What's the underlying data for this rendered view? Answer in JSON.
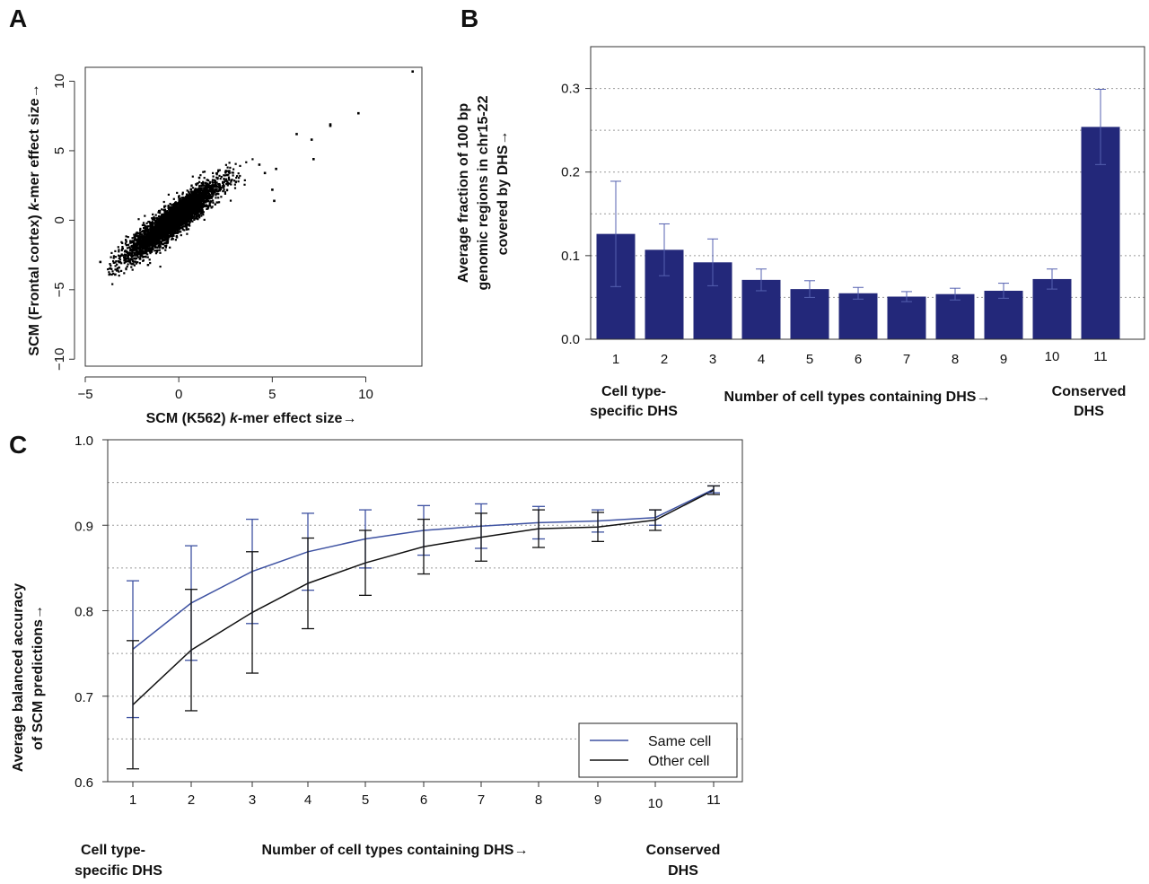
{
  "colors": {
    "bar": "#23287a",
    "bar_error": "#5561b0",
    "same_cell": "#3e52a2",
    "other_cell": "#111111",
    "grid": "#9a9a9a",
    "axis": "#333333"
  },
  "chart_data": [
    {
      "panel": "A",
      "type": "scatter",
      "xlabel": "SCM (K562) k-mer effect size→",
      "ylabel": "SCM (Frontal cortex) k-mer effect size→",
      "xlim": [
        -5,
        13
      ],
      "ylim": [
        -10.5,
        11
      ],
      "xticks": [
        -5,
        0,
        5,
        10
      ],
      "yticks": [
        -10,
        -5,
        0,
        5,
        10
      ],
      "cloud": {
        "description": "dense cloud of thousands of k-mers, correlated",
        "slope": 1.0,
        "x_mean": -0.3,
        "x_sd": 1.2,
        "residual_sd": 0.55,
        "n": 4000
      },
      "outliers": [
        {
          "x": 9.6,
          "y": 7.7
        },
        {
          "x": 8.1,
          "y": 6.9
        },
        {
          "x": 8.1,
          "y": 6.8
        },
        {
          "x": 6.3,
          "y": 6.2
        },
        {
          "x": 7.1,
          "y": 5.8
        },
        {
          "x": 7.2,
          "y": 4.4
        },
        {
          "x": 5.2,
          "y": 3.7
        },
        {
          "x": 5.0,
          "y": 2.2
        },
        {
          "x": 5.1,
          "y": 1.4
        },
        {
          "x": 4.3,
          "y": 4.0
        },
        {
          "x": 4.6,
          "y": 3.4
        },
        {
          "x": -3.4,
          "y": -3.9
        },
        {
          "x": -3.2,
          "y": -3.4
        },
        {
          "x": -4.2,
          "y": -3.0
        },
        {
          "x": 12.5,
          "y": 10.7
        }
      ]
    },
    {
      "panel": "B",
      "type": "bar",
      "title": "",
      "xlabel": "Number of cell types containing DHS→",
      "ylabel_lines": [
        "Average fraction of 100 bp",
        "genomic regions in chr15-22",
        "covered by DHS→"
      ],
      "categories": [
        "1",
        "2",
        "3",
        "4",
        "5",
        "6",
        "7",
        "8",
        "9",
        "10",
        "11"
      ],
      "values": [
        0.126,
        0.107,
        0.092,
        0.071,
        0.06,
        0.055,
        0.051,
        0.054,
        0.058,
        0.072,
        0.254
      ],
      "errors": [
        0.063,
        0.031,
        0.028,
        0.013,
        0.01,
        0.007,
        0.006,
        0.007,
        0.009,
        0.012,
        0.045
      ],
      "ylim": [
        0,
        0.35
      ],
      "yticks": [
        "0.0",
        "0.1",
        "0.2",
        "0.3"
      ],
      "ytick_values": [
        0,
        0.1,
        0.2,
        0.3
      ],
      "grid_values": [
        0.05,
        0.1,
        0.15,
        0.2,
        0.25,
        0.3
      ],
      "left_note": [
        "Cell type-",
        "specific DHS"
      ],
      "right_note": [
        "Conserved",
        "DHS"
      ]
    },
    {
      "panel": "C",
      "type": "line",
      "xlabel": "Number of cell types containing DHS→",
      "ylabel_lines": [
        "Average balanced accuracy",
        "of SCM predictions→"
      ],
      "x": [
        "1",
        "2",
        "3",
        "4",
        "5",
        "6",
        "7",
        "8",
        "9",
        "10",
        "11"
      ],
      "ylim": [
        0.6,
        1.0
      ],
      "yticks": [
        "0.6",
        "0.7",
        "0.8",
        "0.9",
        "1.0"
      ],
      "ytick_values": [
        0.6,
        0.7,
        0.8,
        0.9,
        1.0
      ],
      "grid_values": [
        0.65,
        0.7,
        0.75,
        0.8,
        0.85,
        0.9,
        0.95
      ],
      "series": [
        {
          "name": "Same cell",
          "values": [
            0.755,
            0.809,
            0.846,
            0.869,
            0.884,
            0.894,
            0.899,
            0.903,
            0.905,
            0.909,
            0.942
          ],
          "errors": [
            0.08,
            0.067,
            0.061,
            0.045,
            0.034,
            0.029,
            0.026,
            0.019,
            0.013,
            0.009,
            0.004
          ]
        },
        {
          "name": "Other cell",
          "values": [
            0.69,
            0.754,
            0.798,
            0.832,
            0.856,
            0.875,
            0.886,
            0.896,
            0.898,
            0.906,
            0.941
          ],
          "errors": [
            0.075,
            0.071,
            0.071,
            0.053,
            0.038,
            0.032,
            0.028,
            0.022,
            0.017,
            0.012,
            0.005
          ]
        }
      ],
      "legend_position": "bottom-right",
      "left_note": [
        "Cell type-",
        "specific DHS"
      ],
      "right_note": [
        "Conserved",
        "DHS"
      ]
    }
  ],
  "panel_labels": {
    "a": "A",
    "b": "B",
    "c": "C"
  }
}
